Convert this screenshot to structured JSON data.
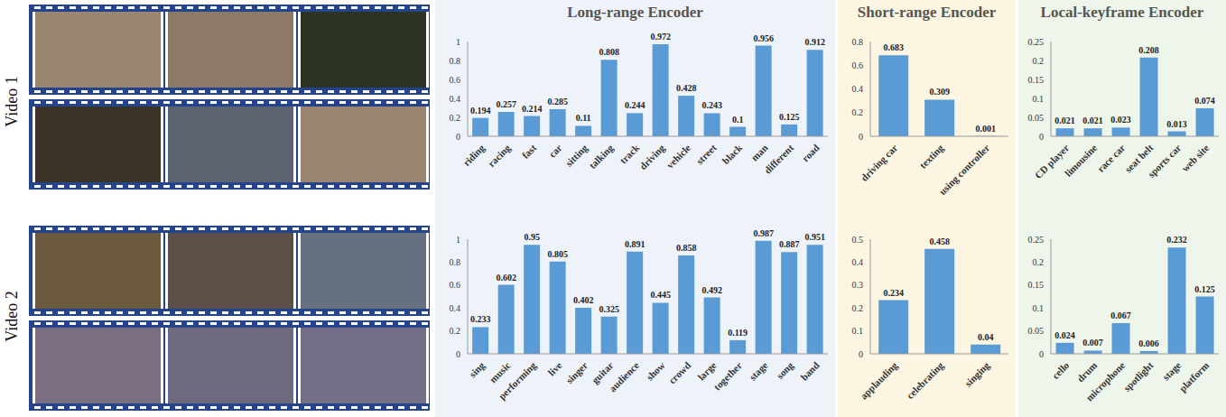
{
  "row_labels": [
    "Video 1",
    "Video 2"
  ],
  "column_titles": [
    "Long-range Encoder",
    "Short-range Encoder",
    "Local-keyframe Encoder"
  ],
  "chart_data": [
    {
      "type": "bar",
      "categories": [
        "riding",
        "racing",
        "fast",
        "car",
        "sitting",
        "talking",
        "track",
        "driving",
        "vehicle",
        "street",
        "black",
        "man",
        "different",
        "road"
      ],
      "values": [
        0.194,
        0.257,
        0.214,
        0.285,
        0.11,
        0.808,
        0.244,
        0.972,
        0.428,
        0.243,
        0.1,
        0.956,
        0.125,
        0.912
      ],
      "color": "#5b9bd5",
      "ylim": [
        0,
        1
      ],
      "yticks": [
        0,
        0.2,
        0.4,
        0.6,
        0.8,
        1
      ],
      "grid": false,
      "data_labels": true
    },
    {
      "type": "bar",
      "categories": [
        "driving car",
        "texting",
        "using controller"
      ],
      "values": [
        0.683,
        0.309,
        0.001
      ],
      "color": "#5b9bd5",
      "ylim": [
        0,
        0.8
      ],
      "yticks": [
        0,
        0.2,
        0.4,
        0.6,
        0.8
      ],
      "grid": false,
      "data_labels": true
    },
    {
      "type": "bar",
      "categories": [
        "CD player",
        "limousine",
        "race car",
        "seat belt",
        "sports car",
        "web site"
      ],
      "values": [
        0.021,
        0.021,
        0.023,
        0.208,
        0.013,
        0.074
      ],
      "color": "#5b9bd5",
      "ylim": [
        0,
        0.25
      ],
      "yticks": [
        0,
        0.05,
        0.1,
        0.15,
        0.2,
        0.25
      ],
      "grid": false,
      "data_labels": true
    },
    {
      "type": "bar",
      "categories": [
        "sing",
        "music",
        "performing",
        "live",
        "singer",
        "guitar",
        "audience",
        "show",
        "crowd",
        "large",
        "together",
        "stage",
        "song",
        "band"
      ],
      "values": [
        0.233,
        0.602,
        0.95,
        0.805,
        0.402,
        0.325,
        0.891,
        0.445,
        0.858,
        0.492,
        0.119,
        0.987,
        0.887,
        0.951
      ],
      "color": "#5b9bd5",
      "ylim": [
        0,
        1
      ],
      "yticks": [
        0,
        0.2,
        0.4,
        0.6,
        0.8,
        1
      ],
      "grid": false,
      "data_labels": true
    },
    {
      "type": "bar",
      "categories": [
        "applauding",
        "celebrating",
        "singing"
      ],
      "values": [
        0.234,
        0.458,
        0.04
      ],
      "color": "#5b9bd5",
      "ylim": [
        0,
        0.5
      ],
      "yticks": [
        0,
        0.1,
        0.2,
        0.3,
        0.4,
        0.5
      ],
      "grid": false,
      "data_labels": true
    },
    {
      "type": "bar",
      "categories": [
        "cello",
        "drum",
        "microphone",
        "spotlight",
        "stage",
        "platform"
      ],
      "values": [
        0.024,
        0.007,
        0.067,
        0.006,
        0.232,
        0.125
      ],
      "color": "#5b9bd5",
      "ylim": [
        0,
        0.25
      ],
      "yticks": [
        0,
        0.05,
        0.1,
        0.15,
        0.2,
        0.25
      ],
      "grid": false,
      "data_labels": true
    }
  ]
}
